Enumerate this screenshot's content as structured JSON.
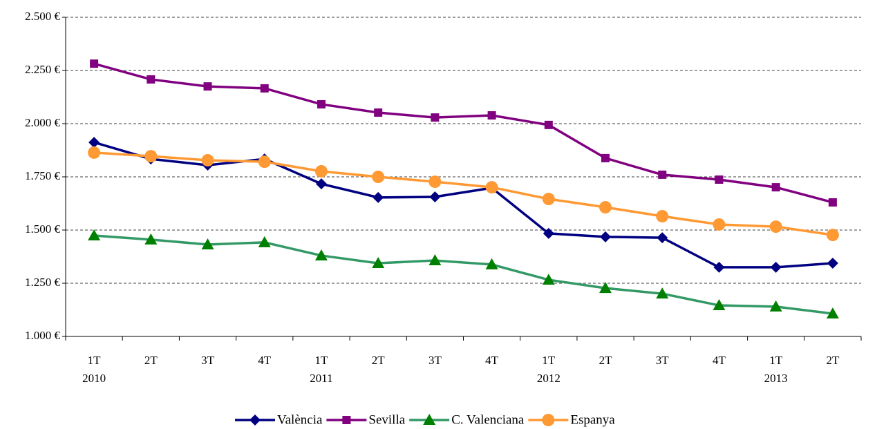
{
  "chart_data": {
    "type": "line",
    "categories": [
      "1T",
      "2T",
      "3T",
      "4T",
      "1T",
      "2T",
      "3T",
      "4T",
      "1T",
      "2T",
      "3T",
      "4T",
      "1T",
      "2T"
    ],
    "years": [
      "2010",
      null,
      null,
      null,
      "2011",
      null,
      null,
      null,
      "2012",
      null,
      null,
      null,
      "2013",
      null
    ],
    "series": [
      {
        "name": "València",
        "color": "#000080",
        "marker": "diamond",
        "values": [
          1912,
          1834,
          1805,
          1834,
          1717,
          1653,
          1656,
          1698,
          1484,
          1468,
          1464,
          1325,
          1325,
          1344
        ]
      },
      {
        "name": "Sevilla",
        "color": "#800080",
        "marker": "square",
        "values": [
          2282,
          2208,
          2175,
          2166,
          2091,
          2052,
          2029,
          2039,
          1994,
          1838,
          1760,
          1737,
          1701,
          1630
        ]
      },
      {
        "name": "C. Valenciana",
        "color": "#339966",
        "marker_color": "#008000",
        "marker": "triangle",
        "values": [
          1474,
          1455,
          1432,
          1442,
          1380,
          1344,
          1357,
          1338,
          1266,
          1227,
          1201,
          1146,
          1140,
          1107
        ]
      },
      {
        "name": "Espanya",
        "color": "#ff9933",
        "marker": "circle",
        "values": [
          1864,
          1847,
          1828,
          1821,
          1776,
          1750,
          1727,
          1701,
          1646,
          1607,
          1565,
          1526,
          1516,
          1477
        ]
      }
    ],
    "ylim": [
      1000,
      2500
    ],
    "yticks": [
      {
        "value": 1000,
        "label": "1.000 €"
      },
      {
        "value": 1250,
        "label": "1.250 €"
      },
      {
        "value": 1500,
        "label": "1.500 €"
      },
      {
        "value": 1750,
        "label": "1.750 €"
      },
      {
        "value": 2000,
        "label": "2.000 €"
      },
      {
        "value": 2250,
        "label": "2.250 €"
      },
      {
        "value": 2500,
        "label": "2.500 €"
      }
    ],
    "grid": true,
    "legend": "bottom"
  }
}
